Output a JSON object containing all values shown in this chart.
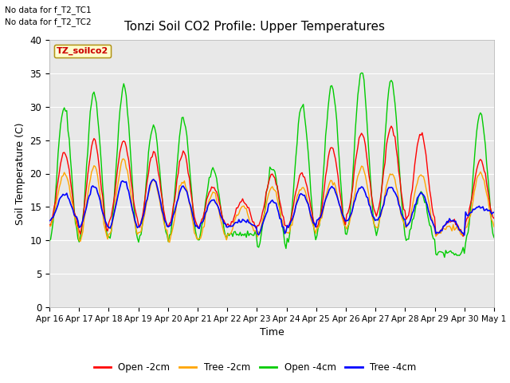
{
  "title": "Tonzi Soil CO2 Profile: Upper Temperatures",
  "xlabel": "Time",
  "ylabel": "Soil Temperature (C)",
  "no_data_text": [
    "No data for f_T2_TC1",
    "No data for f_T2_TC2"
  ],
  "legend_box_label": "TZ_soilco2",
  "ylim": [
    0,
    40
  ],
  "yticks": [
    0,
    5,
    10,
    15,
    20,
    25,
    30,
    35,
    40
  ],
  "xtick_labels": [
    "Apr 16",
    "Apr 17",
    "Apr 18",
    "Apr 19",
    "Apr 20",
    "Apr 21",
    "Apr 22",
    "Apr 23",
    "Apr 24",
    "Apr 25",
    "Apr 26",
    "Apr 27",
    "Apr 28",
    "Apr 29",
    "Apr 30",
    "May 1"
  ],
  "colors": {
    "open_2cm": "#ff0000",
    "tree_2cm": "#ffa500",
    "open_4cm": "#00cc00",
    "tree_4cm": "#0000ff"
  },
  "legend_labels": [
    "Open -2cm",
    "Tree -2cm",
    "Open -4cm",
    "Tree -4cm"
  ],
  "bg_color": "#e8e8e8",
  "n_days": 15,
  "day_peaks_open2": [
    23,
    25,
    25,
    23,
    23,
    18,
    16,
    20,
    20,
    24,
    26,
    27,
    26,
    13,
    22
  ],
  "day_peaks_tree2": [
    20,
    21,
    22,
    19,
    19,
    17,
    15,
    18,
    18,
    19,
    21,
    20,
    20,
    12,
    20
  ],
  "day_peaks_open4": [
    30,
    32,
    33,
    27,
    28,
    21,
    11,
    21,
    30,
    33,
    35,
    34,
    17,
    8,
    29
  ],
  "day_peaks_tree4": [
    17,
    18,
    19,
    19,
    18,
    16,
    13,
    16,
    17,
    18,
    18,
    18,
    17,
    13,
    15
  ],
  "day_mins_open2": [
    12,
    11,
    13,
    12,
    12,
    12,
    12,
    12,
    12,
    12,
    14,
    14,
    13,
    11,
    13
  ],
  "day_mins_tree2": [
    12,
    10,
    11,
    11,
    10,
    10,
    11,
    11,
    11,
    12,
    12,
    12,
    12,
    11,
    12
  ],
  "day_mins_open4": [
    10,
    10,
    10,
    10,
    10,
    10,
    11,
    9,
    10,
    11,
    11,
    11,
    10,
    8,
    10
  ],
  "day_mins_tree4": [
    13,
    12,
    12,
    12,
    12,
    12,
    12,
    11,
    12,
    13,
    13,
    13,
    12,
    11,
    14
  ]
}
